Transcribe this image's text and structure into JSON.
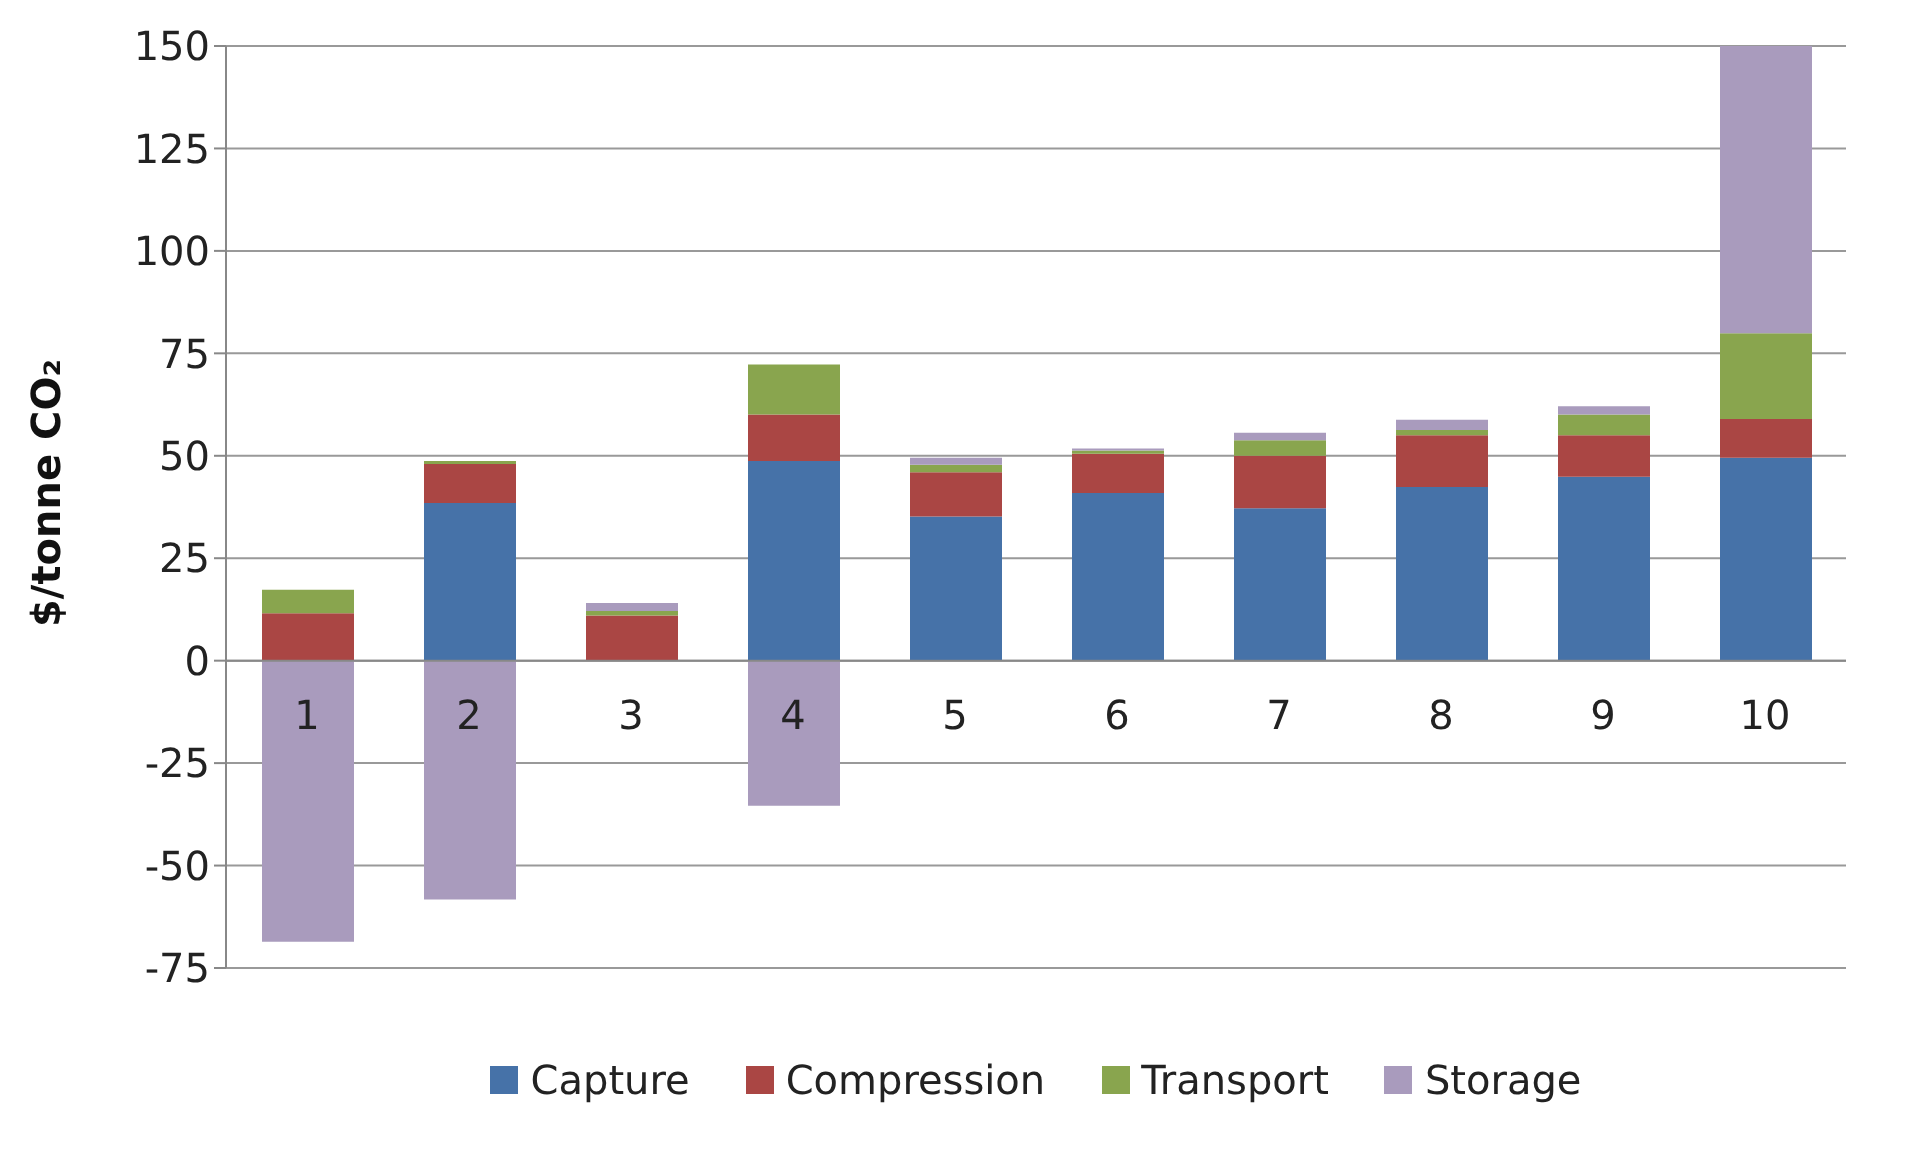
{
  "chart_data": {
    "type": "bar",
    "stacked": true,
    "ylabel": "$/tonne CO₂",
    "categories": [
      "1",
      "2",
      "3",
      "4",
      "5",
      "6",
      "7",
      "8",
      "9",
      "10"
    ],
    "series": [
      {
        "name": "Capture",
        "color": "#4672a8",
        "values": [
          0,
          38.5,
          0,
          48.7,
          35.2,
          40.9,
          37.2,
          42.4,
          44.9,
          49.5
        ]
      },
      {
        "name": "Compression",
        "color": "#aa4644",
        "values": [
          11.6,
          9.5,
          11,
          11.4,
          10.8,
          9.6,
          12.8,
          12.6,
          10.1,
          9.5
        ]
      },
      {
        "name": "Transport",
        "color": "#89a54e",
        "values": [
          5.7,
          0.7,
          1.1,
          12.2,
          1.8,
          0.8,
          3.8,
          1.3,
          5.1,
          20.9
        ]
      },
      {
        "name": "Storage",
        "color": "#a99bbd",
        "values": [
          -68.6,
          -58.3,
          2,
          -35.4,
          1.7,
          0.5,
          1.8,
          2.5,
          2,
          70.1
        ]
      }
    ],
    "ylim": [
      -75,
      150
    ],
    "yticks": [
      -75,
      -50,
      -25,
      0,
      25,
      50,
      75,
      100,
      125,
      150
    ],
    "grid": "y",
    "legend": "bottom"
  }
}
